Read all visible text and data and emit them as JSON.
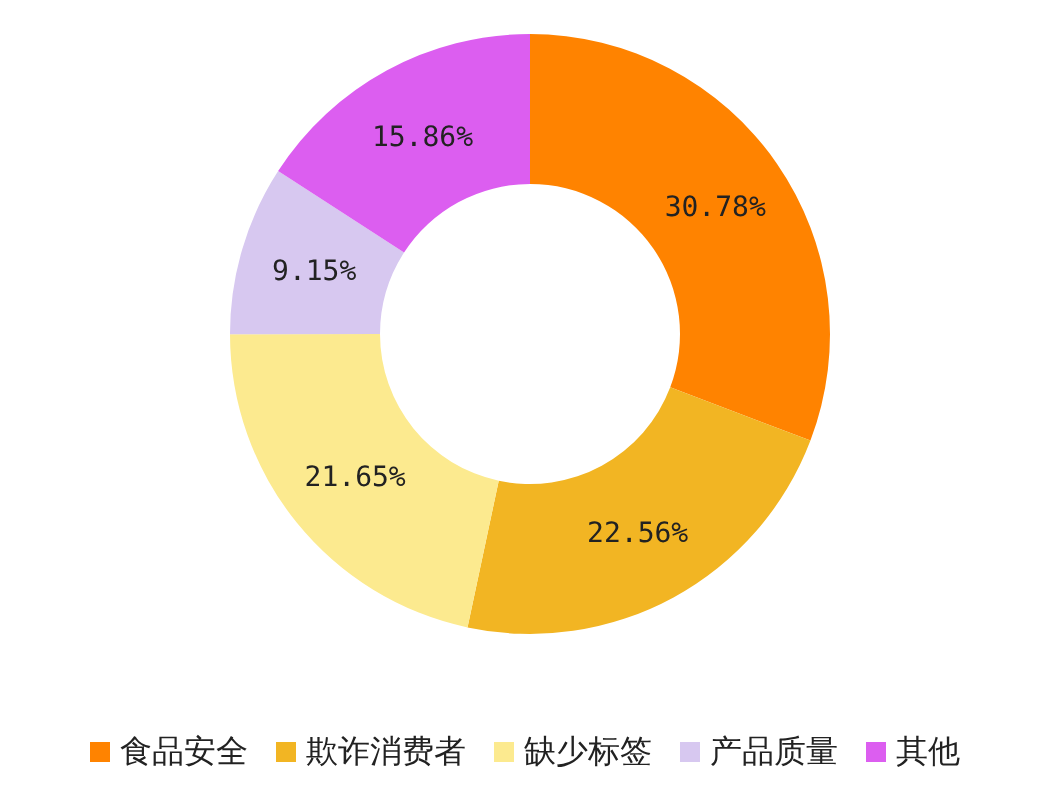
{
  "chart_data": {
    "type": "donut",
    "categories": [
      "食品安全",
      "欺诈消费者",
      "缺少标签",
      "产品质量",
      "其他"
    ],
    "values": [
      30.78,
      22.56,
      21.65,
      9.15,
      15.86
    ],
    "colors": [
      "#ff8300",
      "#f2b523",
      "#fcea8f",
      "#d7c8f0",
      "#dc5ef0"
    ],
    "value_labels": [
      "30.78%",
      "22.56%",
      "21.65%",
      "9.15%",
      "15.86%"
    ],
    "legend": "bottom"
  }
}
